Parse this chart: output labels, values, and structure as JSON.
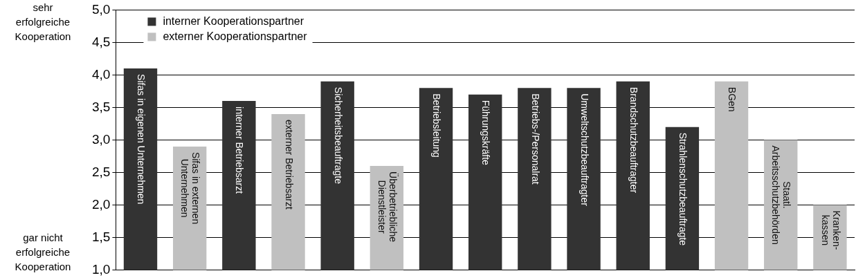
{
  "chart_data": {
    "type": "bar",
    "categories": [
      "Sifas in eigenen Unternehmen",
      "Sifas in externen\nUnternehmen",
      "interner Betriebsarzt",
      "externer Betriebsarzt",
      "Sicherheitsbeauftragte",
      "Überbetriebliche\nDienstleister",
      "Betriebsleitung",
      "Führungskräfte",
      "Betriebs-/Personalrat",
      "Umweltschutzbeauftragter",
      "Brandschutzbeauftragter",
      "Strahlenschutzbeauftragte",
      "BGen",
      "Staatl.\nArbeitsschutzbehörden",
      "Kranken-\nkassen"
    ],
    "series": [
      {
        "name": "interner Kooperationspartner",
        "color": "#333333",
        "values": [
          4.1,
          null,
          3.6,
          null,
          3.9,
          null,
          3.8,
          3.7,
          3.8,
          3.8,
          3.9,
          3.2,
          null,
          null,
          null
        ]
      },
      {
        "name": "externer Kooperationspartner",
        "color": "#c0c0c0",
        "values": [
          null,
          2.9,
          null,
          3.4,
          null,
          2.6,
          null,
          null,
          null,
          null,
          null,
          null,
          3.9,
          3.0,
          2.0
        ]
      }
    ],
    "ylim": [
      1.0,
      5.0
    ],
    "yticks": [
      {
        "value": 1.0,
        "label": "1,0"
      },
      {
        "value": 1.5,
        "label": "1,5"
      },
      {
        "value": 2.0,
        "label": "2,0"
      },
      {
        "value": 2.5,
        "label": "2,5"
      },
      {
        "value": 3.0,
        "label": "3,0"
      },
      {
        "value": 3.5,
        "label": "3,5"
      },
      {
        "value": 4.0,
        "label": "4,0"
      },
      {
        "value": 4.5,
        "label": "4,5"
      },
      {
        "value": 5.0,
        "label": "5,0"
      }
    ],
    "annotations": [
      "sehr\nerfolgreiche\nKooperation",
      "gar nicht\nerfolgreiche\nKooperation"
    ],
    "grid": "y",
    "legend": "top left"
  }
}
